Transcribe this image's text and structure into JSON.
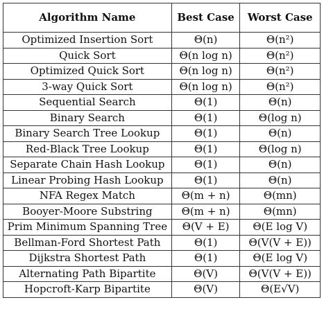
{
  "table": {
    "headers": [
      "Algorithm Name",
      "Best Case",
      "Worst Case"
    ],
    "rows": [
      {
        "name": "Optimized Insertion Sort",
        "best": "Θ(n)",
        "worst": "Θ(n²)"
      },
      {
        "name": "Quick Sort",
        "best": "Θ(n log n)",
        "worst": "Θ(n²)"
      },
      {
        "name": "Optimized Quick Sort",
        "best": "Θ(n log n)",
        "worst": "Θ(n²)"
      },
      {
        "name": "3-way Quick Sort",
        "best": "Θ(n log n)",
        "worst": "Θ(n²)"
      },
      {
        "name": "Sequential Search",
        "best": "Θ(1)",
        "worst": "Θ(n)"
      },
      {
        "name": "Binary Search",
        "best": "Θ(1)",
        "worst": "Θ(log n)"
      },
      {
        "name": "Binary Search Tree Lookup",
        "best": "Θ(1)",
        "worst": "Θ(n)"
      },
      {
        "name": "Red-Black Tree Lookup",
        "best": "Θ(1)",
        "worst": "Θ(log n)"
      },
      {
        "name": "Separate Chain Hash Lookup",
        "best": "Θ(1)",
        "worst": "Θ(n)"
      },
      {
        "name": "Linear Probing Hash Lookup",
        "best": "Θ(1)",
        "worst": "Θ(n)"
      },
      {
        "name": "NFA Regex Match",
        "best": "Θ(m + n)",
        "worst": "Θ(mn)"
      },
      {
        "name": "Booyer-Moore Substring",
        "best": "Θ(m + n)",
        "worst": "Θ(mn)"
      },
      {
        "name": "Prim Minimum Spanning Tree",
        "best": "Θ(V + E)",
        "worst": "Θ(E log V)"
      },
      {
        "name": "Bellman-Ford Shortest Path",
        "best": "Θ(1)",
        "worst": "Θ(V(V + E))"
      },
      {
        "name": "Dijkstra Shortest Path",
        "best": "Θ(1)",
        "worst": "Θ(E log V)"
      },
      {
        "name": "Alternating Path Bipartite",
        "best": "Θ(V)",
        "worst": "Θ(V(V + E))"
      },
      {
        "name": "Hopcroft-Karp Bipartite",
        "best": "Θ(V)",
        "worst": "Θ(E√V)"
      }
    ]
  }
}
